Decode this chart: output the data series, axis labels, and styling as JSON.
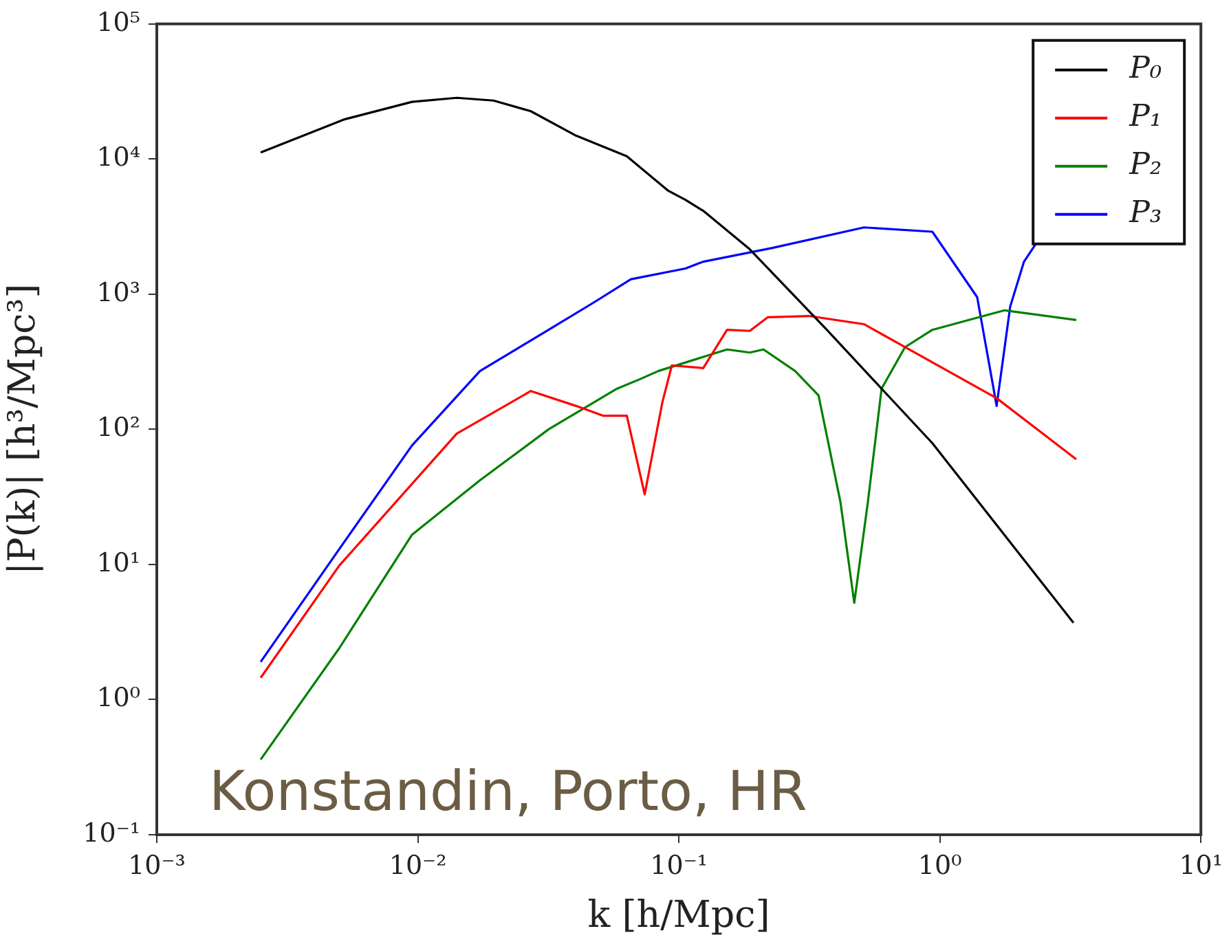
{
  "chart_data": {
    "type": "line",
    "xlabel": "k [h/Mpc]",
    "ylabel": "|P(k)| [h³/Mpc³]",
    "log": "xy",
    "grid": false,
    "legend": "top right",
    "marker": "none",
    "line_style": "solid",
    "xlim": [
      0.001,
      10
    ],
    "xticks": [
      {
        "value": 0.001,
        "label": "10⁻³"
      },
      {
        "value": 0.01,
        "label": "10⁻²"
      },
      {
        "value": 0.1,
        "label": "10⁻¹"
      },
      {
        "value": 1,
        "label": "10⁰"
      },
      {
        "value": 10,
        "label": "10¹"
      }
    ],
    "ylim": [
      0.1,
      100000
    ],
    "yticks": [
      {
        "value": 0.1,
        "label": "10⁻¹"
      },
      {
        "value": 1,
        "label": "10⁰"
      },
      {
        "value": 10,
        "label": "10¹"
      },
      {
        "value": 100,
        "label": "10²"
      },
      {
        "value": 1000,
        "label": "10³"
      },
      {
        "value": 10000,
        "label": "10⁴"
      },
      {
        "value": 100000,
        "label": "10⁵"
      }
    ],
    "series": [
      {
        "name": "P₀",
        "color": "#000000",
        "x": [
          0.0025,
          0.0052,
          0.0095,
          0.0141,
          0.0195,
          0.0271,
          0.0404,
          0.0632,
          0.0908,
          0.106,
          0.124,
          0.187,
          0.369,
          0.598,
          0.936,
          3.25
        ],
        "values": [
          11200,
          19600,
          26500,
          28400,
          27100,
          22600,
          14900,
          10500,
          5850,
          4990,
          4140,
          2150,
          545,
          200,
          79,
          3.7
        ]
      },
      {
        "name": "P₁",
        "color": "#ff0000",
        "x": [
          0.0025,
          0.005,
          0.0141,
          0.0271,
          0.0404,
          0.0514,
          0.0632,
          0.074,
          0.0865,
          0.094,
          0.124,
          0.153,
          0.187,
          0.219,
          0.315,
          0.512,
          1.65,
          3.33
        ],
        "values": [
          1.45,
          9.8,
          93,
          192,
          149,
          126,
          126,
          33,
          159,
          297,
          284,
          545,
          535,
          675,
          690,
          600,
          170,
          60
        ]
      },
      {
        "name": "P₂",
        "color": "#008000",
        "x": [
          0.0025,
          0.005,
          0.0095,
          0.0173,
          0.0317,
          0.058,
          0.0713,
          0.0834,
          0.153,
          0.187,
          0.211,
          0.279,
          0.343,
          0.416,
          0.47,
          0.53,
          0.598,
          0.735,
          0.936,
          1.77,
          3.33
        ],
        "values": [
          0.36,
          2.4,
          16.6,
          42,
          100,
          200,
          236,
          270,
          390,
          370,
          390,
          270,
          178,
          29,
          5.2,
          29,
          200,
          405,
          545,
          760,
          645
        ]
      },
      {
        "name": "P₃",
        "color": "#0000ff",
        "x": [
          0.0025,
          0.005,
          0.0095,
          0.0173,
          0.0317,
          0.0473,
          0.0655,
          0.106,
          0.124,
          0.228,
          0.512,
          0.936,
          1.39,
          1.65,
          1.86,
          2.1,
          2.37
        ],
        "values": [
          1.9,
          13,
          76,
          270,
          545,
          870,
          1290,
          1550,
          1740,
          2200,
          3120,
          2900,
          950,
          149,
          810,
          1740,
          2470
        ]
      }
    ],
    "annotations": [
      "Konstandin, Porto, HR"
    ]
  }
}
